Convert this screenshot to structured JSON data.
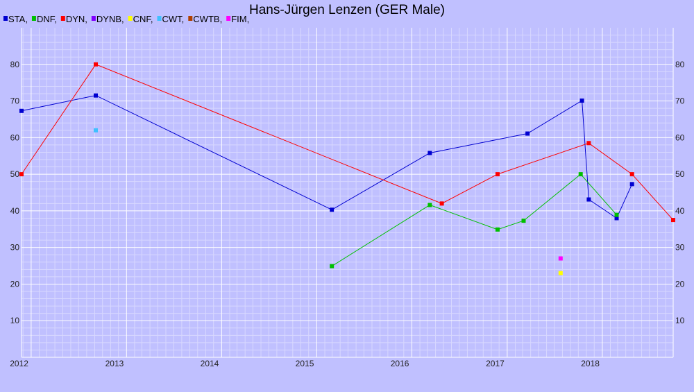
{
  "chart_data": {
    "type": "line",
    "title": "Hans-Jürgen Lenzen (GER Male)",
    "xlabel": "",
    "ylabel": "",
    "x_axis": "date",
    "xlim": [
      "2011-11-25",
      "2018-09-30"
    ],
    "ylim": [
      0,
      90
    ],
    "y_ticks": [
      10,
      20,
      30,
      40,
      50,
      60,
      70,
      80
    ],
    "x_ticks": [
      {
        "label": "2012",
        "date": "2012-01-01"
      },
      {
        "label": "2013",
        "date": "2013-01-01"
      },
      {
        "label": "2014",
        "date": "2014-01-01"
      },
      {
        "label": "2015",
        "date": "2015-01-01"
      },
      {
        "label": "2016",
        "date": "2016-01-01"
      },
      {
        "label": "2017",
        "date": "2017-01-01"
      },
      {
        "label": "2018",
        "date": "2018-01-01"
      }
    ],
    "grid": true,
    "legend_position": "top-left",
    "series": [
      {
        "name": "STA",
        "color": "#0000d0",
        "points": [
          {
            "x": "2011-11-25",
            "y": 67.3
          },
          {
            "x": "2012-09-05",
            "y": 71.5
          },
          {
            "x": "2015-02-28",
            "y": 40.3
          },
          {
            "x": "2016-03-10",
            "y": 55.8
          },
          {
            "x": "2017-03-20",
            "y": 61.1
          },
          {
            "x": "2017-10-15",
            "y": 70.1
          },
          {
            "x": "2017-11-10",
            "y": 43.1
          },
          {
            "x": "2018-02-25",
            "y": 38.0
          },
          {
            "x": "2018-04-25",
            "y": 47.3
          }
        ]
      },
      {
        "name": "DNF",
        "color": "#00c000",
        "points": [
          {
            "x": "2015-02-28",
            "y": 24.9
          },
          {
            "x": "2016-03-10",
            "y": 41.6
          },
          {
            "x": "2016-11-25",
            "y": 34.9
          },
          {
            "x": "2017-03-05",
            "y": 37.3
          },
          {
            "x": "2017-10-10",
            "y": 50.0
          },
          {
            "x": "2018-02-25",
            "y": 38.9
          }
        ]
      },
      {
        "name": "DYN",
        "color": "#ff0000",
        "points": [
          {
            "x": "2011-11-25",
            "y": 50.0
          },
          {
            "x": "2012-09-05",
            "y": 80.0
          },
          {
            "x": "2016-04-25",
            "y": 42.0
          },
          {
            "x": "2016-11-25",
            "y": 50.0
          },
          {
            "x": "2017-11-10",
            "y": 58.5
          },
          {
            "x": "2018-04-25",
            "y": 50.0
          },
          {
            "x": "2018-09-30",
            "y": 37.5
          }
        ]
      },
      {
        "name": "DYNB",
        "color": "#8000ff",
        "points": []
      },
      {
        "name": "CNF",
        "color": "#ffff00",
        "points": [
          {
            "x": "2017-07-25",
            "y": 23.0
          }
        ]
      },
      {
        "name": "CWT",
        "color": "#40c0ff",
        "points": [
          {
            "x": "2012-09-05",
            "y": 62.0
          }
        ]
      },
      {
        "name": "CWTB",
        "color": "#b04000",
        "points": []
      },
      {
        "name": "FIM",
        "color": "#ff00ff",
        "points": [
          {
            "x": "2017-07-25",
            "y": 27.0
          }
        ]
      }
    ]
  }
}
